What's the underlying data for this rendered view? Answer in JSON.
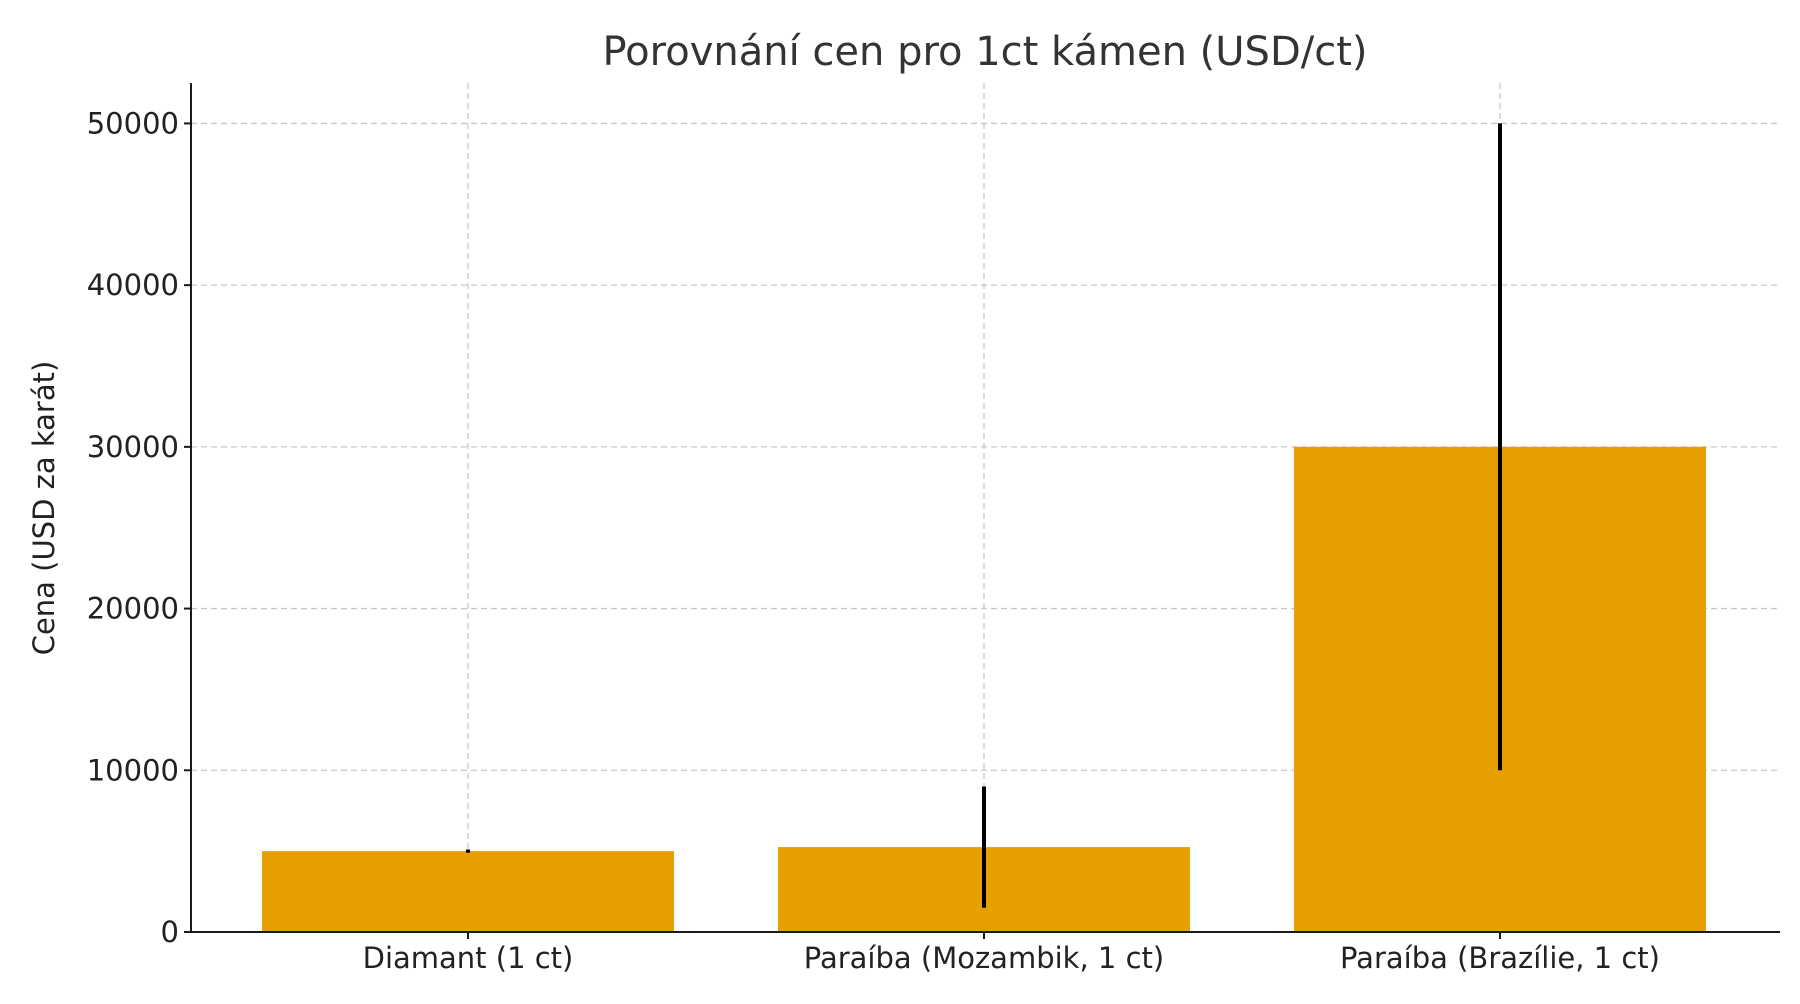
{
  "chart_data": {
    "type": "bar",
    "title": "Porovnání cen pro 1ct kámen (USD/ct)",
    "xlabel": "",
    "ylabel": "Cena (USD za karát)",
    "categories": [
      "Diamant (1 ct)",
      "Paraíba (Mozambik, 1 ct)",
      "Paraíba (Brazílie, 1 ct)"
    ],
    "values": [
      5000,
      5250,
      30000
    ],
    "error_low": [
      4900,
      1500,
      10000
    ],
    "error_high": [
      5100,
      9000,
      50000
    ],
    "ylim": [
      0,
      52500
    ],
    "yticks": [
      0,
      10000,
      20000,
      30000,
      40000,
      50000
    ],
    "grid": true,
    "bar_color": "#E5A000",
    "error_bar_color": "#000000"
  }
}
